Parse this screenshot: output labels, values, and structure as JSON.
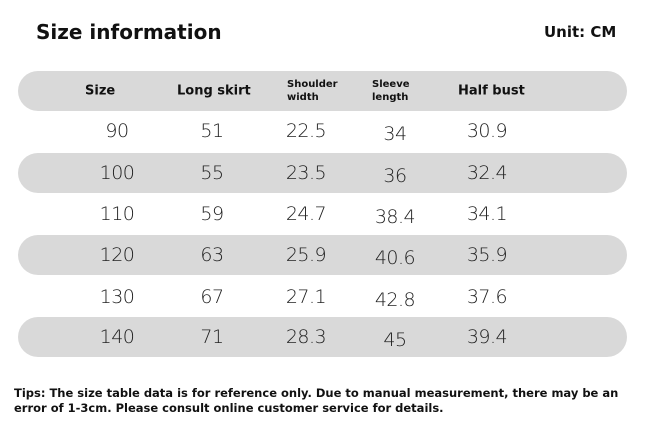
{
  "header": {
    "title": "Size information",
    "unit": "Unit: CM"
  },
  "table": {
    "columns": [
      "Size",
      "Long skirt",
      "Shoulder width",
      "Sleeve length",
      "Half bust"
    ],
    "rows": [
      [
        "90",
        "51",
        "22.5",
        "34",
        "30.9"
      ],
      [
        "100",
        "55",
        "23.5",
        "36",
        "32.4"
      ],
      [
        "110",
        "59",
        "24.7",
        "38.4",
        "34.1"
      ],
      [
        "120",
        "63",
        "25.9",
        "40.6",
        "35.9"
      ],
      [
        "130",
        "67",
        "27.1",
        "42.8",
        "37.6"
      ],
      [
        "140",
        "71",
        "28.3",
        "45",
        "39.4"
      ]
    ]
  },
  "tips": "Tips: The size table data is for reference only. Due to manual measurement, there may be an error of 1-3cm. Please consult online customer service for details."
}
